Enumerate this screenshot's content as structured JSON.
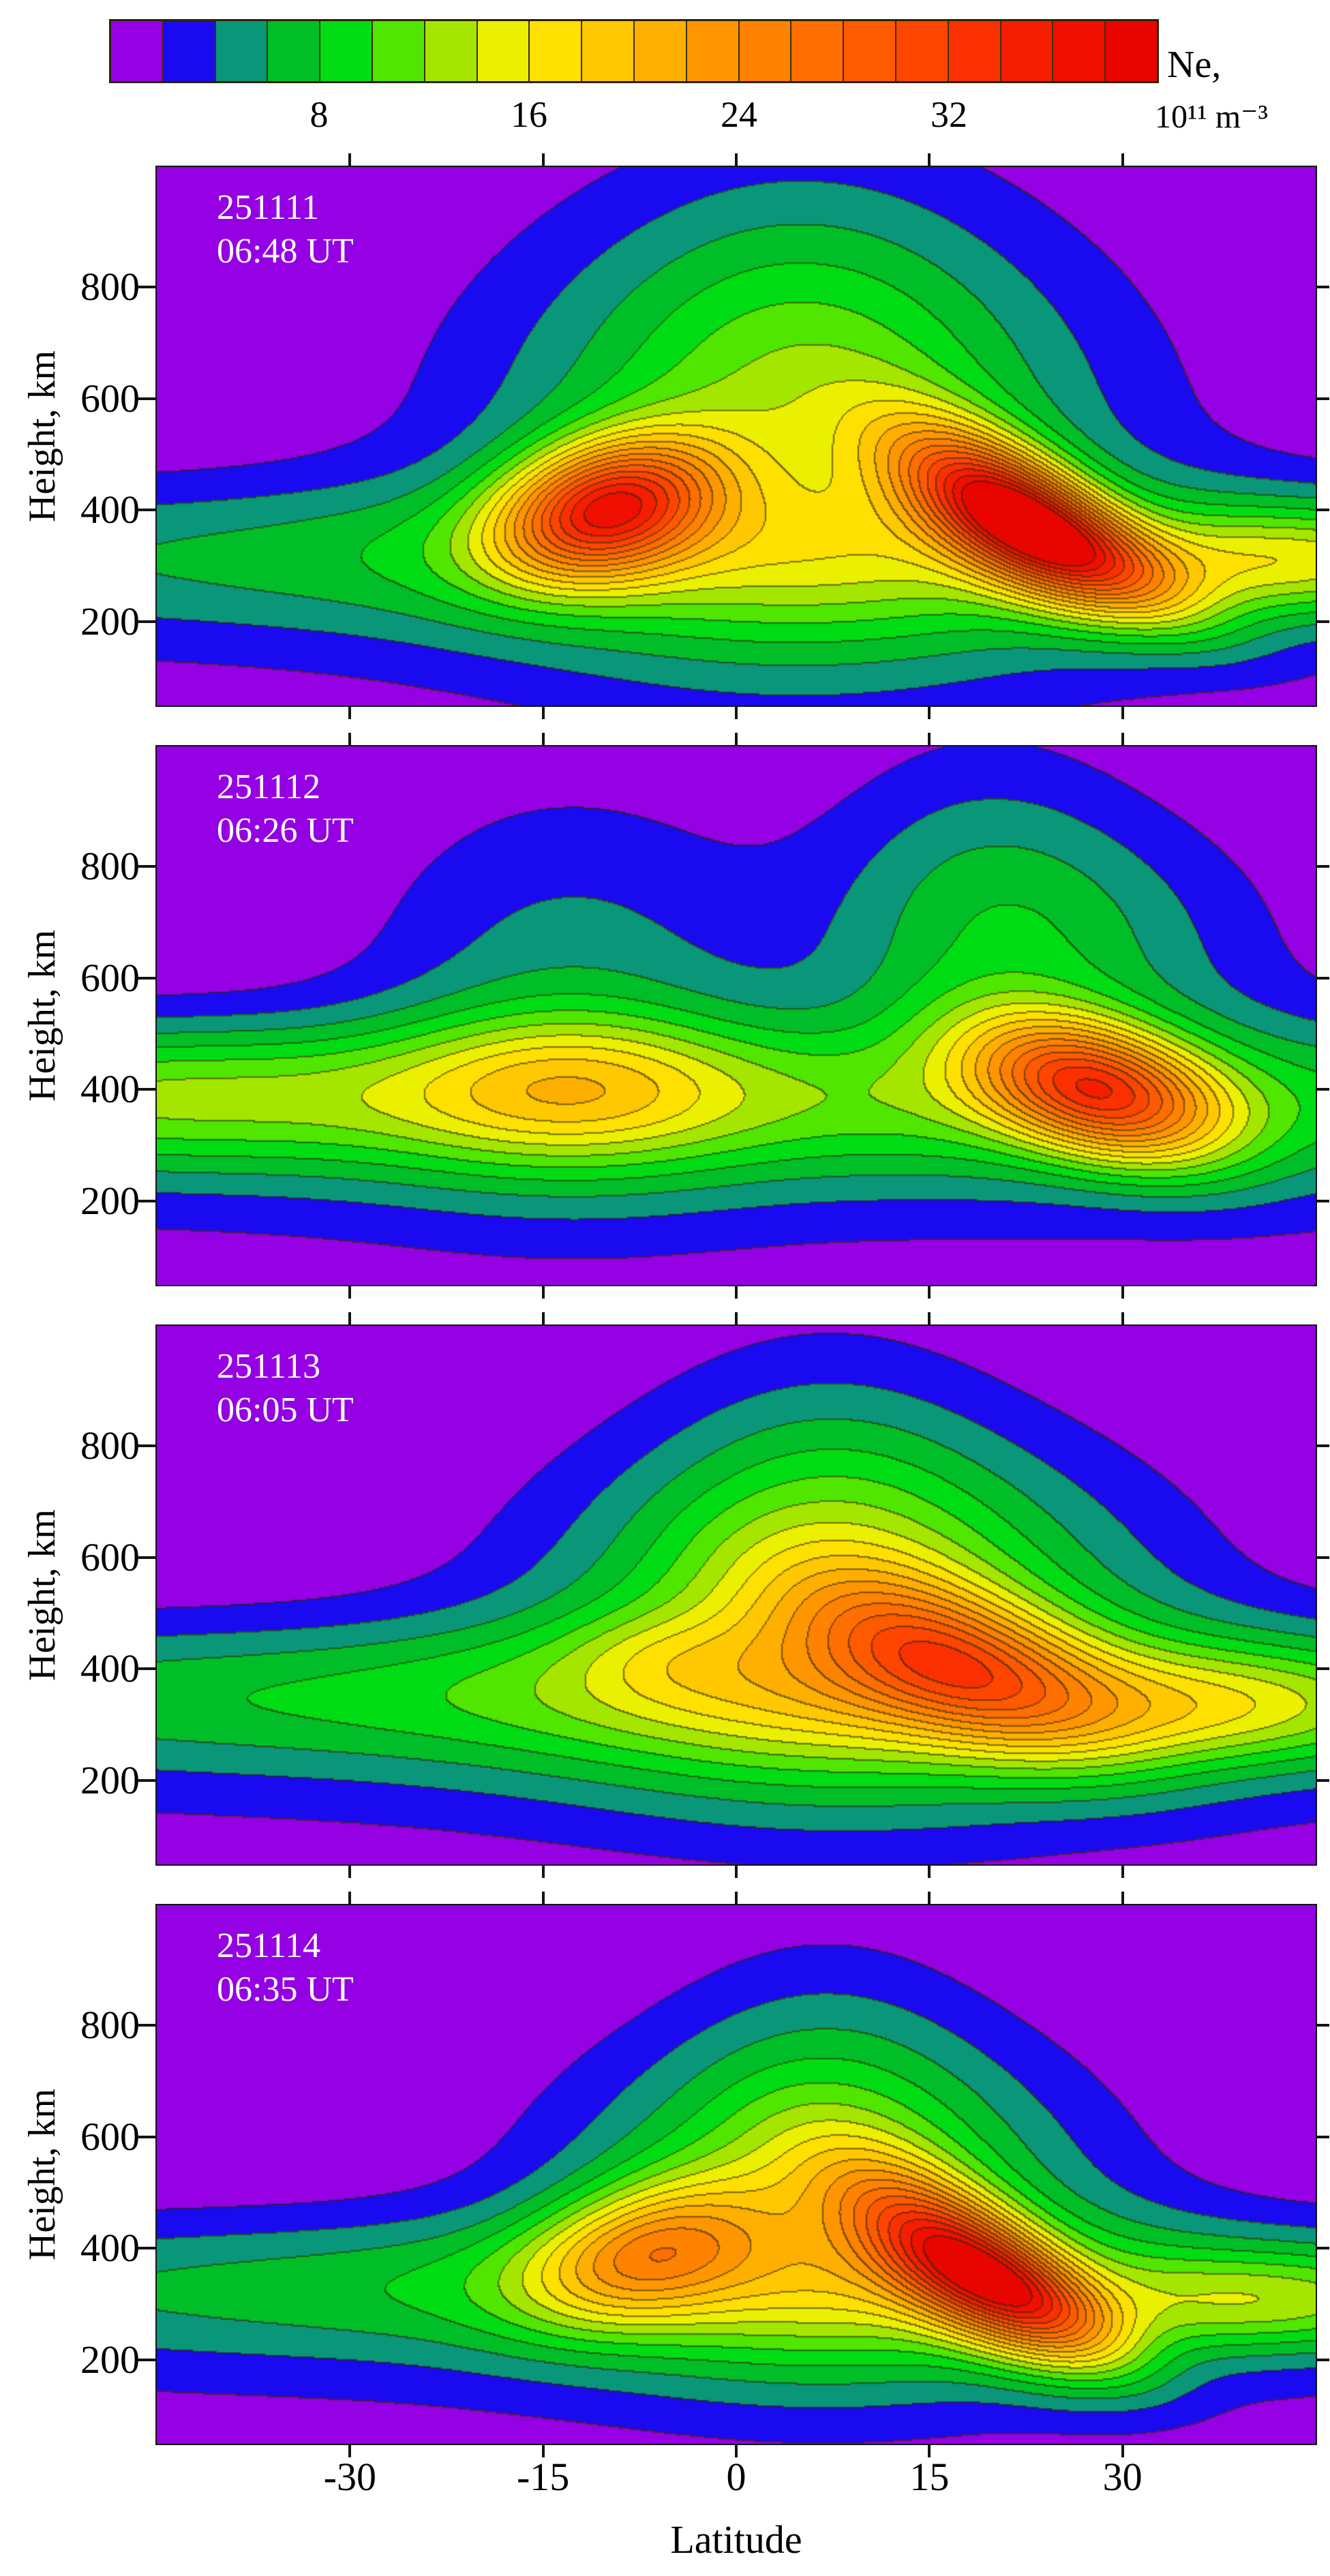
{
  "figure": {
    "background": "#ffffff"
  },
  "colorbar": {
    "title_line1": "Ne,",
    "title_line2": "10¹¹ m⁻³",
    "tick_labels": [
      "8",
      "16",
      "24",
      "32"
    ],
    "tick_values": [
      8,
      16,
      24,
      32
    ],
    "min": 0,
    "max": 40,
    "step": 2,
    "colors": [
      "#9400e3",
      "#1a0af0",
      "#0a9678",
      "#00be28",
      "#00dc14",
      "#50e600",
      "#a5e600",
      "#ebf000",
      "#ffe000",
      "#ffc800",
      "#ffaf00",
      "#ff9600",
      "#ff8200",
      "#ff6e00",
      "#ff5a00",
      "#ff4600",
      "#fa3000",
      "#f51e00",
      "#f00f00",
      "#e80500"
    ],
    "border_color": "#2b2200",
    "contour_line_color": "#2d2800"
  },
  "axes": {
    "x_label": "Latitude",
    "x_tick_labels": [
      "-30",
      "-15",
      "0",
      "15",
      "30"
    ],
    "x_tick_values": [
      -30,
      -15,
      0,
      15,
      30
    ],
    "x_range": [
      -45,
      45
    ],
    "y_label": "Height, km",
    "y_tick_labels": [
      "200",
      "400",
      "600",
      "800"
    ],
    "y_tick_values": [
      200,
      400,
      600,
      800
    ],
    "y_range": [
      50,
      1015
    ]
  },
  "chart_data": {
    "type": "heatmap",
    "subtype": "filled_contour_latitude_height_electron_density",
    "colorbar_label": "Ne, 10¹¹ m⁻³",
    "value_units": "10^11 m^-3",
    "levels": {
      "min": 0,
      "max": 40,
      "step": 2,
      "tick_values": [
        8,
        16,
        24,
        32
      ]
    },
    "x": {
      "label": "Latitude",
      "range": [
        -45,
        45
      ],
      "ticks": [
        -30,
        -15,
        0,
        15,
        30
      ]
    },
    "y": {
      "label": "Height, km",
      "range": [
        50,
        1015
      ],
      "ticks": [
        200,
        400,
        600,
        800
      ]
    },
    "grid": false,
    "panels": [
      {
        "date_label": "251111",
        "time_label": "06:48 UT",
        "peaks": [
          {
            "lat": -10,
            "height_km": 405,
            "ne_max": 38
          },
          {
            "lat": 21,
            "height_km": 400,
            "ne_max": 39
          }
        ],
        "field_blobs": [
          [
            0,
            330,
            70,
            95,
            0,
            6
          ],
          [
            0,
            215,
            70,
            120,
            0,
            2.2
          ],
          [
            5,
            520,
            17,
            280,
            0,
            10
          ],
          [
            5,
            700,
            10,
            230,
            0,
            3.5
          ],
          [
            -10,
            408,
            6,
            80,
            -15,
            26
          ],
          [
            21,
            400,
            7,
            72,
            32,
            28
          ],
          [
            28,
            315,
            7,
            55,
            28,
            10
          ],
          [
            43,
            310,
            10,
            65,
            0,
            9
          ]
        ]
      },
      {
        "date_label": "251112",
        "time_label": "06:26 UT",
        "peaks": [
          {
            "lat": -13,
            "height_km": 410,
            "ne_max": 18
          },
          {
            "lat": 28,
            "height_km": 400,
            "ne_max": 34
          }
        ],
        "field_blobs": [
          [
            0,
            385,
            75,
            100,
            0,
            9
          ],
          [
            0,
            220,
            75,
            120,
            0,
            2
          ],
          [
            -45,
            395,
            14,
            85,
            0,
            4.5
          ],
          [
            -13,
            410,
            9,
            90,
            0,
            7
          ],
          [
            28,
            402,
            7,
            78,
            18,
            23
          ],
          [
            24,
            640,
            12,
            180,
            0,
            6
          ],
          [
            19,
            780,
            8,
            200,
            0,
            3
          ],
          [
            -13,
            580,
            11,
            240,
            0,
            5
          ]
        ]
      },
      {
        "date_label": "251113",
        "time_label": "06:05 UT",
        "peaks": [
          {
            "lat": 17,
            "height_km": 415,
            "ne_max": 33
          }
        ],
        "field_blobs": [
          [
            0,
            360,
            70,
            95,
            0,
            8
          ],
          [
            0,
            215,
            70,
            120,
            0,
            2.2
          ],
          [
            9,
            500,
            16,
            210,
            0,
            12
          ],
          [
            7,
            690,
            9,
            210,
            0,
            4
          ],
          [
            17,
            415,
            9,
            85,
            22,
            15
          ],
          [
            -6,
            425,
            5,
            55,
            0,
            2.5
          ],
          [
            38,
            330,
            10,
            70,
            0,
            7
          ]
        ]
      },
      {
        "date_label": "251114",
        "time_label": "06:35 UT",
        "peaks": [
          {
            "lat": -7,
            "height_km": 400,
            "ne_max": 26
          },
          {
            "lat": 17.5,
            "height_km": 378,
            "ne_max": 37
          }
        ],
        "field_blobs": [
          [
            0,
            340,
            60,
            90,
            0,
            7
          ],
          [
            0,
            215,
            70,
            115,
            0,
            2.2
          ],
          [
            7,
            480,
            14,
            200,
            0,
            11
          ],
          [
            7,
            660,
            8,
            200,
            0,
            3.5
          ],
          [
            -7,
            400,
            6.5,
            80,
            -15,
            13
          ],
          [
            17.5,
            378,
            7.5,
            72,
            35,
            23
          ],
          [
            24,
            295,
            6,
            52,
            30,
            9
          ],
          [
            41,
            305,
            10,
            60,
            0,
            7
          ]
        ]
      }
    ]
  }
}
